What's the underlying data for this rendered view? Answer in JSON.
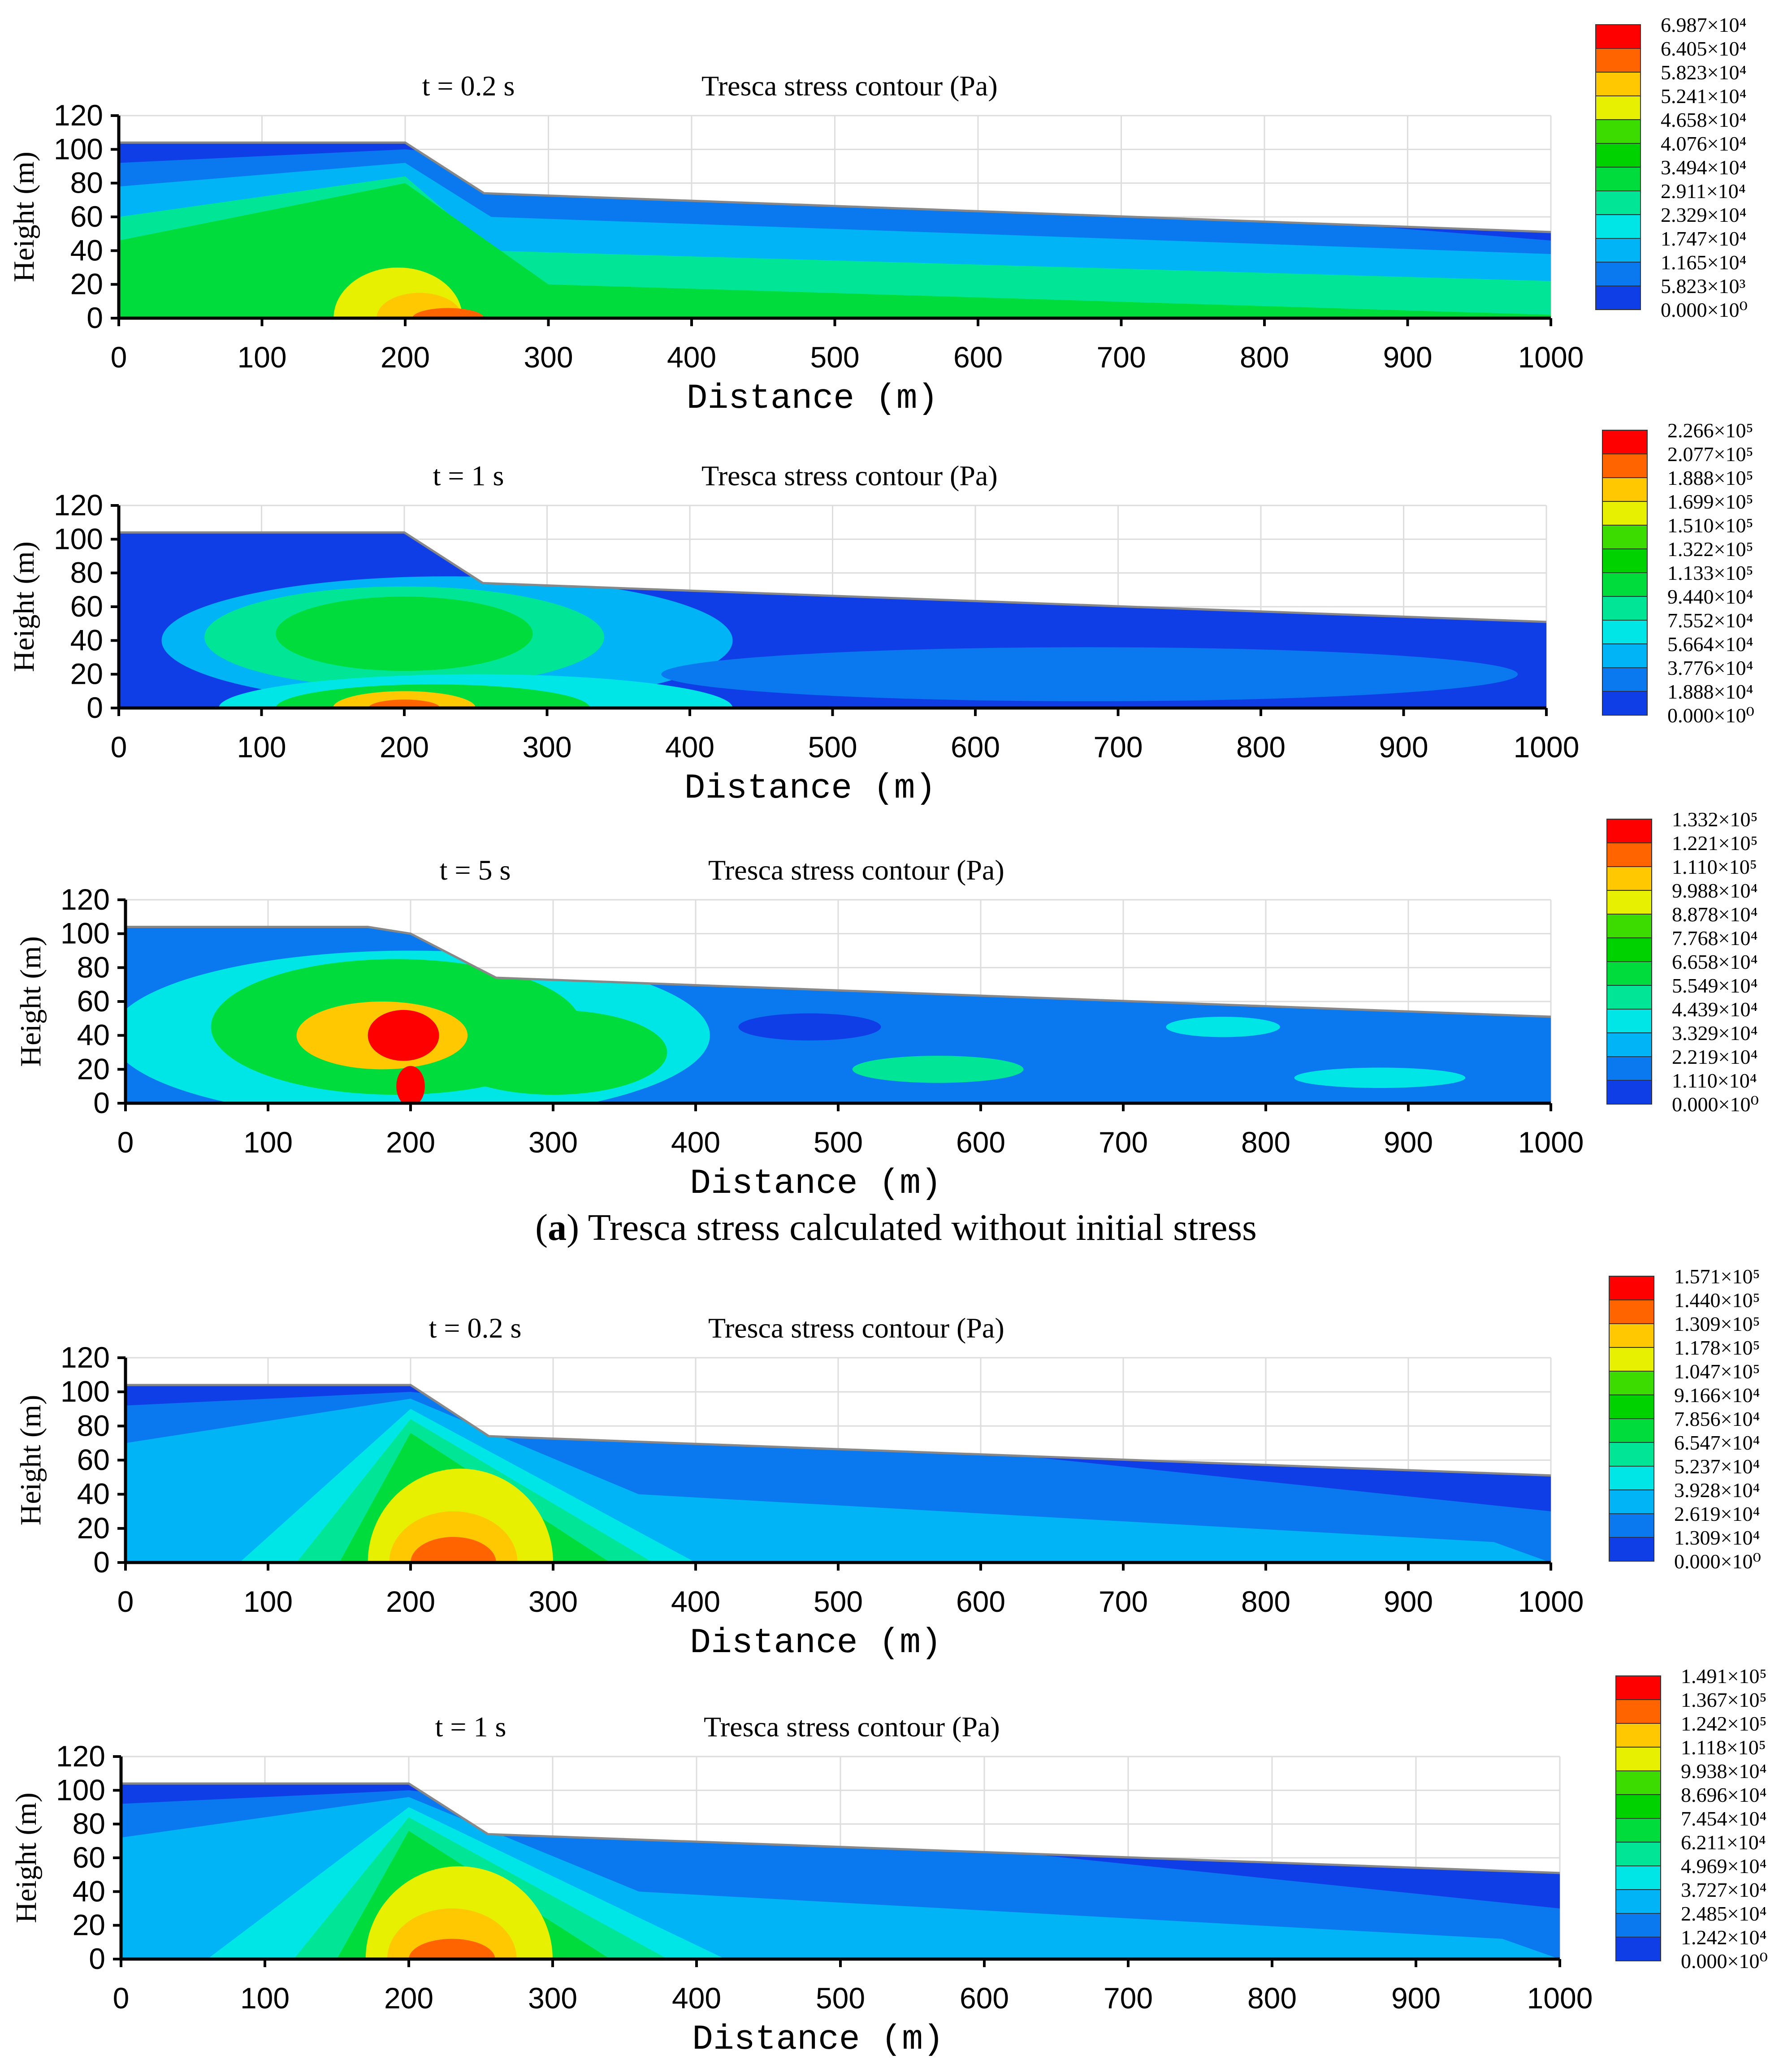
{
  "figure": {
    "caption_letter": "a",
    "caption_text": "Tresca stress calculated without initial stress"
  },
  "colors": {
    "scale": [
      "#0000ff",
      "#0f3de6",
      "#0a78ee",
      "#00b4f5",
      "#00e6e6",
      "#00e696",
      "#00dc3c",
      "#00d200",
      "#3cdc00",
      "#e6f000",
      "#ffc800",
      "#ff6400",
      "#ff0000"
    ],
    "grid": "#dddddd"
  },
  "chart_data": [
    {
      "type": "heatmap",
      "time_label": "t = 0.2 s",
      "title": "Tresca  stress contour  (Pa)",
      "xlabel": "Distance  (m)",
      "ylabel": "Height  (m)",
      "xlim": [
        0,
        1000
      ],
      "ylim": [
        0,
        120
      ],
      "xticks": [
        "0",
        "100",
        "200",
        "300",
        "400",
        "500",
        "600",
        "700",
        "800",
        "900",
        "1000"
      ],
      "yticks": [
        "0",
        "20",
        "40",
        "60",
        "80",
        "100",
        "120"
      ],
      "surface": [
        [
          0,
          104
        ],
        [
          200,
          104
        ],
        [
          255,
          74
        ],
        [
          1000,
          51
        ]
      ],
      "legend": [
        "6.987×10⁴",
        "6.405×10⁴",
        "5.823×10⁴",
        "5.241×10⁴",
        "4.658×10⁴",
        "4.076×10⁴",
        "3.494×10⁴",
        "2.911×10⁴",
        "2.329×10⁴",
        "1.747×10⁴",
        "1.165×10⁴",
        "5.823×10³",
        "0.000×10⁰"
      ],
      "zones": [
        {
          "x": [
            0,
            200,
            1000
          ],
          "y_top": [
            104,
            104,
            51
          ],
          "level": 1
        },
        {
          "x": [
            0,
            200,
            1000
          ],
          "y_top": [
            92,
            100,
            46
          ],
          "level": 2
        },
        {
          "x": [
            0,
            200,
            260,
            1000
          ],
          "y_top": [
            78,
            92,
            60,
            38
          ],
          "level": 3
        },
        {
          "x": [
            0,
            200,
            260,
            1000
          ],
          "y_top": [
            60,
            84,
            40,
            22
          ],
          "level": 5
        },
        {
          "x": [
            0,
            200,
            300,
            1000
          ],
          "y_top": [
            46,
            80,
            20,
            2
          ],
          "level": 6
        },
        {
          "cx": 195,
          "cy": 0,
          "rx": 45,
          "ry": 30,
          "level": 9
        },
        {
          "cx": 210,
          "cy": 0,
          "rx": 30,
          "ry": 15,
          "level": 10
        },
        {
          "cx": 230,
          "cy": 0,
          "rx": 25,
          "ry": 6,
          "level": 11
        }
      ]
    },
    {
      "type": "heatmap",
      "time_label": "t = 1 s",
      "title": "Tresca  stress contour  (Pa)",
      "xlabel": "Distance  (m)",
      "ylabel": "Height  (m)",
      "xlim": [
        0,
        1000
      ],
      "ylim": [
        0,
        120
      ],
      "xticks": [
        "0",
        "100",
        "200",
        "300",
        "400",
        "500",
        "600",
        "700",
        "800",
        "900",
        "1000"
      ],
      "yticks": [
        "0",
        "20",
        "40",
        "60",
        "80",
        "100",
        "120"
      ],
      "surface": [
        [
          0,
          104
        ],
        [
          200,
          104
        ],
        [
          255,
          74
        ],
        [
          1000,
          51
        ]
      ],
      "legend": [
        "2.266×10⁵",
        "2.077×10⁵",
        "1.888×10⁵",
        "1.699×10⁵",
        "1.510×10⁵",
        "1.322×10⁵",
        "1.133×10⁵",
        "9.440×10⁴",
        "7.552×10⁴",
        "5.664×10⁴",
        "3.776×10⁴",
        "1.888×10⁴",
        "0.000×10⁰"
      ],
      "zones": [
        {
          "x": [
            0,
            200,
            1000
          ],
          "y_top": [
            104,
            104,
            51
          ],
          "level": 1
        },
        {
          "cx": 230,
          "cy": 40,
          "rx": 200,
          "ry": 38,
          "level": 3
        },
        {
          "cx": 200,
          "cy": 42,
          "rx": 140,
          "ry": 30,
          "level": 5
        },
        {
          "cx": 200,
          "cy": 44,
          "rx": 90,
          "ry": 22,
          "level": 6
        },
        {
          "cx": 250,
          "cy": 0,
          "rx": 180,
          "ry": 20,
          "level": 4
        },
        {
          "cx": 220,
          "cy": 0,
          "rx": 110,
          "ry": 14,
          "level": 6
        },
        {
          "cx": 200,
          "cy": 0,
          "rx": 50,
          "ry": 10,
          "level": 10
        },
        {
          "cx": 200,
          "cy": 0,
          "rx": 25,
          "ry": 5,
          "level": 11
        },
        {
          "cx": 680,
          "cy": 20,
          "rx": 300,
          "ry": 16,
          "level": 2
        }
      ]
    },
    {
      "type": "heatmap",
      "time_label": "t = 5 s",
      "title": "Tresca  stress contour  (Pa)",
      "xlabel": "Distance  (m)",
      "ylabel": "Height  (m)",
      "xlim": [
        0,
        1000
      ],
      "ylim": [
        0,
        120
      ],
      "xticks": [
        "0",
        "100",
        "200",
        "300",
        "400",
        "500",
        "600",
        "700",
        "800",
        "900",
        "1000"
      ],
      "yticks": [
        "0",
        "20",
        "40",
        "60",
        "80",
        "100",
        "120"
      ],
      "surface": [
        [
          0,
          104
        ],
        [
          170,
          104
        ],
        [
          200,
          100
        ],
        [
          260,
          74
        ],
        [
          1000,
          51
        ]
      ],
      "legend": [
        "1.332×10⁵",
        "1.221×10⁵",
        "1.110×10⁵",
        "9.988×10⁴",
        "8.878×10⁴",
        "7.768×10⁴",
        "6.658×10⁴",
        "5.549×10⁴",
        "4.439×10⁴",
        "3.329×10⁴",
        "2.219×10⁴",
        "1.110×10⁴",
        "0.000×10⁰"
      ],
      "zones": [
        {
          "x": [
            0,
            200,
            1000
          ],
          "y_top": [
            104,
            104,
            51
          ],
          "level": 2
        },
        {
          "cx": 200,
          "cy": 40,
          "rx": 210,
          "ry": 50,
          "level": 4
        },
        {
          "cx": 190,
          "cy": 45,
          "rx": 130,
          "ry": 40,
          "level": 6
        },
        {
          "cx": 300,
          "cy": 30,
          "rx": 80,
          "ry": 25,
          "level": 6
        },
        {
          "cx": 180,
          "cy": 40,
          "rx": 60,
          "ry": 20,
          "level": 10
        },
        {
          "cx": 195,
          "cy": 40,
          "rx": 25,
          "ry": 15,
          "level": 12
        },
        {
          "cx": 200,
          "cy": 10,
          "rx": 10,
          "ry": 12,
          "level": 12
        },
        {
          "cx": 570,
          "cy": 20,
          "rx": 60,
          "ry": 8,
          "level": 5
        },
        {
          "cx": 770,
          "cy": 45,
          "rx": 40,
          "ry": 6,
          "level": 4
        },
        {
          "cx": 880,
          "cy": 15,
          "rx": 60,
          "ry": 6,
          "level": 4
        },
        {
          "cx": 480,
          "cy": 45,
          "rx": 50,
          "ry": 8,
          "level": 1
        }
      ]
    },
    {
      "type": "heatmap",
      "time_label": "t = 0.2 s",
      "title": "Tresca  stress contour  (Pa)",
      "xlabel": "Distance  (m)",
      "ylabel": "Height  (m)",
      "xlim": [
        0,
        1000
      ],
      "ylim": [
        0,
        120
      ],
      "xticks": [
        "0",
        "100",
        "200",
        "300",
        "400",
        "500",
        "600",
        "700",
        "800",
        "900",
        "1000"
      ],
      "yticks": [
        "0",
        "20",
        "40",
        "60",
        "80",
        "100",
        "120"
      ],
      "surface": [
        [
          0,
          104
        ],
        [
          200,
          104
        ],
        [
          255,
          74
        ],
        [
          1000,
          51
        ]
      ],
      "legend": [
        "1.571×10⁵",
        "1.440×10⁵",
        "1.309×10⁵",
        "1.178×10⁵",
        "1.047×10⁵",
        "9.166×10⁴",
        "7.856×10⁴",
        "6.547×10⁴",
        "5.237×10⁴",
        "3.928×10⁴",
        "2.619×10⁴",
        "1.309×10⁴",
        "0.000×10⁰"
      ],
      "zones": [
        {
          "x": [
            0,
            200,
            1000
          ],
          "y_top": [
            104,
            104,
            51
          ],
          "level": 1
        },
        {
          "x": [
            0,
            200,
            1000
          ],
          "y_top": [
            92,
            100,
            30
          ],
          "level": 2
        },
        {
          "x": [
            0,
            200,
            360,
            960,
            1000
          ],
          "y_top": [
            70,
            96,
            40,
            12,
            0
          ],
          "level": 3
        },
        {
          "x": [
            80,
            200,
            400
          ],
          "y_top": [
            0,
            90,
            0
          ],
          "level": 4
        },
        {
          "x": [
            120,
            200,
            370
          ],
          "y_top": [
            0,
            84,
            0
          ],
          "level": 5
        },
        {
          "x": [
            150,
            200,
            340
          ],
          "y_top": [
            0,
            76,
            0
          ],
          "level": 6
        },
        {
          "cx": 235,
          "cy": 0,
          "rx": 65,
          "ry": 55,
          "level": 9
        },
        {
          "cx": 230,
          "cy": 0,
          "rx": 45,
          "ry": 30,
          "level": 10
        },
        {
          "cx": 230,
          "cy": 0,
          "rx": 30,
          "ry": 15,
          "level": 11
        }
      ]
    },
    {
      "type": "heatmap",
      "time_label": "t = 1 s",
      "title": "Tresca  stress contour  (Pa)",
      "xlabel": "Distance  (m)",
      "ylabel": "Height  (m)",
      "xlim": [
        0,
        1000
      ],
      "ylim": [
        0,
        120
      ],
      "xticks": [
        "0",
        "100",
        "200",
        "300",
        "400",
        "500",
        "600",
        "700",
        "800",
        "900",
        "1000"
      ],
      "yticks": [
        "0",
        "20",
        "40",
        "60",
        "80",
        "100",
        "120"
      ],
      "surface": [
        [
          0,
          104
        ],
        [
          200,
          104
        ],
        [
          255,
          74
        ],
        [
          1000,
          51
        ]
      ],
      "legend": [
        "1.491×10⁵",
        "1.367×10⁵",
        "1.242×10⁵",
        "1.118×10⁵",
        "9.938×10⁴",
        "8.696×10⁴",
        "7.454×10⁴",
        "6.211×10⁴",
        "4.969×10⁴",
        "3.727×10⁴",
        "2.485×10⁴",
        "1.242×10⁴",
        "0.000×10⁰"
      ],
      "zones": [
        {
          "x": [
            0,
            200,
            1000
          ],
          "y_top": [
            104,
            104,
            51
          ],
          "level": 1
        },
        {
          "x": [
            0,
            200,
            1000
          ],
          "y_top": [
            92,
            100,
            30
          ],
          "level": 2
        },
        {
          "x": [
            0,
            200,
            360,
            960,
            1000
          ],
          "y_top": [
            72,
            96,
            40,
            12,
            0
          ],
          "level": 3
        },
        {
          "x": [
            60,
            200,
            420
          ],
          "y_top": [
            0,
            90,
            0
          ],
          "level": 4
        },
        {
          "x": [
            120,
            200,
            380
          ],
          "y_top": [
            0,
            84,
            0
          ],
          "level": 5
        },
        {
          "x": [
            150,
            200,
            340
          ],
          "y_top": [
            0,
            76,
            0
          ],
          "level": 6
        },
        {
          "cx": 235,
          "cy": 0,
          "rx": 65,
          "ry": 55,
          "level": 9
        },
        {
          "cx": 230,
          "cy": 0,
          "rx": 45,
          "ry": 30,
          "level": 10
        },
        {
          "cx": 230,
          "cy": 0,
          "rx": 30,
          "ry": 12,
          "level": 11
        }
      ]
    }
  ]
}
